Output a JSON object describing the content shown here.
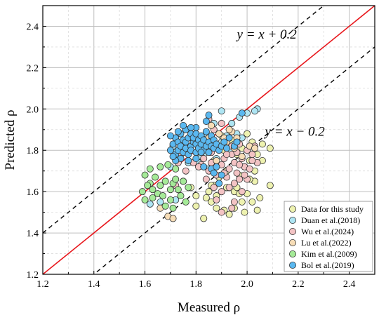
{
  "chart_data": {
    "type": "scatter",
    "title": "",
    "xlabel": "Measured ρ",
    "ylabel": "Predicted ρ",
    "xlim": [
      1.2,
      2.5
    ],
    "ylim": [
      1.2,
      2.5
    ],
    "x_ticks": [
      "1.2",
      "1.4",
      "1.6",
      "1.8",
      "2.0",
      "2.2",
      "2.4"
    ],
    "y_ticks": [
      "1.2",
      "1.4",
      "1.6",
      "1.8",
      "2.0",
      "2.2",
      "2.4"
    ],
    "grid": true,
    "legend_position": "bottom-right",
    "reference_lines": [
      {
        "label": "y = x + 0.2",
        "offset": 0.2,
        "style": "dashed",
        "color": "#000000"
      },
      {
        "label": "y = x",
        "offset": 0.0,
        "style": "solid",
        "color": "#e8161b"
      },
      {
        "label": "y = x − 0.2",
        "offset": -0.2,
        "style": "dashed",
        "color": "#000000"
      }
    ],
    "annotations": [
      {
        "text": "y = x + 0.2",
        "x": 1.96,
        "y": 2.34
      },
      {
        "text": "y = x − 0.2",
        "x": 2.07,
        "y": 1.87
      }
    ],
    "series": [
      {
        "name": "Data for this study",
        "color": "#eef2b0",
        "points": [
          [
            1.87,
            1.63
          ],
          [
            1.92,
            1.62
          ],
          [
            1.95,
            1.6
          ],
          [
            1.97,
            1.59
          ],
          [
            2.0,
            1.59
          ],
          [
            1.85,
            1.6
          ],
          [
            1.8,
            1.58
          ],
          [
            1.98,
            1.55
          ],
          [
            2.02,
            1.55
          ],
          [
            2.05,
            1.57
          ],
          [
            2.09,
            1.63
          ],
          [
            2.03,
            1.65
          ],
          [
            2.01,
            1.66
          ],
          [
            1.95,
            1.52
          ],
          [
            1.99,
            1.5
          ],
          [
            2.04,
            1.51
          ],
          [
            1.88,
            1.52
          ],
          [
            1.8,
            1.53
          ],
          [
            1.86,
            1.55
          ],
          [
            1.93,
            1.49
          ],
          [
            1.91,
            1.51
          ],
          [
            1.83,
            1.47
          ],
          [
            1.96,
            1.62
          ],
          [
            2.03,
            1.7
          ],
          [
            2.06,
            1.75
          ],
          [
            2.09,
            1.81
          ],
          [
            2.04,
            1.78
          ],
          [
            1.99,
            1.72
          ],
          [
            1.97,
            1.68
          ],
          [
            1.92,
            1.7
          ],
          [
            1.89,
            1.67
          ],
          [
            1.86,
            1.63
          ],
          [
            1.78,
            1.62
          ],
          [
            1.88,
            1.58
          ],
          [
            1.84,
            1.57
          ],
          [
            2.0,
            1.88
          ],
          [
            2.06,
            1.83
          ],
          [
            2.02,
            1.84
          ],
          [
            1.94,
            1.85
          ],
          [
            1.9,
            1.87
          ],
          [
            1.98,
            1.81
          ],
          [
            1.91,
            1.8
          ],
          [
            1.87,
            1.75
          ],
          [
            1.96,
            1.78
          ],
          [
            2.01,
            1.75
          ]
        ]
      },
      {
        "name": "Duan et al.(2018)",
        "color": "#aee5f3",
        "points": [
          [
            1.72,
            1.79
          ],
          [
            1.75,
            1.82
          ],
          [
            1.78,
            1.8
          ],
          [
            1.8,
            1.85
          ],
          [
            1.83,
            1.78
          ],
          [
            1.86,
            1.82
          ],
          [
            1.9,
            1.84
          ],
          [
            1.93,
            1.8
          ],
          [
            1.96,
            1.88
          ],
          [
            2.0,
            1.98
          ],
          [
            2.04,
            2.0
          ],
          [
            2.03,
            1.99
          ],
          [
            1.9,
            1.99
          ],
          [
            1.87,
            1.93
          ],
          [
            1.82,
            1.77
          ],
          [
            1.77,
            1.74
          ],
          [
            1.74,
            1.76
          ],
          [
            1.7,
            1.72
          ],
          [
            1.85,
            1.71
          ],
          [
            1.88,
            1.76
          ],
          [
            1.95,
            1.83
          ],
          [
            1.98,
            1.86
          ],
          [
            1.92,
            1.87
          ],
          [
            1.79,
            1.87
          ],
          [
            1.76,
            1.9
          ],
          [
            1.71,
            1.82
          ],
          [
            1.84,
            1.88
          ],
          [
            1.81,
            1.74
          ],
          [
            1.62,
            1.54
          ],
          [
            1.66,
            1.55
          ],
          [
            1.72,
            1.56
          ],
          [
            1.94,
            1.93
          ],
          [
            1.97,
            1.96
          ]
        ]
      },
      {
        "name": "Wu et al.(2024)",
        "color": "#f3c3c4",
        "points": [
          [
            1.85,
            1.7
          ],
          [
            1.88,
            1.68
          ],
          [
            1.9,
            1.73
          ],
          [
            1.93,
            1.71
          ],
          [
            1.95,
            1.74
          ],
          [
            1.98,
            1.76
          ],
          [
            2.0,
            1.8
          ],
          [
            2.02,
            1.78
          ],
          [
            1.92,
            1.67
          ],
          [
            1.89,
            1.64
          ],
          [
            1.87,
            1.62
          ],
          [
            1.84,
            1.66
          ],
          [
            1.96,
            1.69
          ],
          [
            1.99,
            1.72
          ],
          [
            1.94,
            1.78
          ],
          [
            1.91,
            1.76
          ],
          [
            1.97,
            1.83
          ],
          [
            2.03,
            1.82
          ],
          [
            1.86,
            1.74
          ],
          [
            1.83,
            1.76
          ],
          [
            1.8,
            1.79
          ],
          [
            1.82,
            1.73
          ],
          [
            1.79,
            1.74
          ],
          [
            1.76,
            1.7
          ],
          [
            1.73,
            1.74
          ],
          [
            1.74,
            1.78
          ],
          [
            1.77,
            1.81
          ],
          [
            2.01,
            1.71
          ],
          [
            2.04,
            1.74
          ],
          [
            1.95,
            1.64
          ],
          [
            1.93,
            1.62
          ],
          [
            1.9,
            1.6
          ],
          [
            1.88,
            1.56
          ],
          [
            1.95,
            1.55
          ],
          [
            1.98,
            1.6
          ],
          [
            2.0,
            1.66
          ],
          [
            1.87,
            1.9
          ],
          [
            1.9,
            1.93
          ],
          [
            1.85,
            1.95
          ],
          [
            1.89,
            1.81
          ],
          [
            1.94,
            1.82
          ],
          [
            1.92,
            1.78
          ],
          [
            1.97,
            1.73
          ],
          [
            1.99,
            1.68
          ],
          [
            1.86,
            1.79
          ],
          [
            1.81,
            1.72
          ],
          [
            1.96,
            1.79
          ],
          [
            1.91,
            1.69
          ],
          [
            1.97,
            1.66
          ],
          [
            2.02,
            1.75
          ],
          [
            1.9,
            1.5
          ],
          [
            1.94,
            1.52
          ],
          [
            1.85,
            1.84
          ],
          [
            1.72,
            1.63
          ],
          [
            1.75,
            1.65
          ]
        ]
      },
      {
        "name": "Lu  et al.(2022)",
        "color": "#f7ddb7",
        "points": [
          [
            1.69,
            1.48
          ],
          [
            1.71,
            1.47
          ],
          [
            1.66,
            1.52
          ],
          [
            1.94,
            1.89
          ],
          [
            1.96,
            1.86
          ],
          [
            1.92,
            1.84
          ],
          [
            1.98,
            1.77
          ],
          [
            2.01,
            1.82
          ],
          [
            1.88,
            1.75
          ],
          [
            1.85,
            1.86
          ],
          [
            1.93,
            1.9
          ],
          [
            1.89,
            1.88
          ],
          [
            1.86,
            1.92
          ],
          [
            2.03,
            1.81
          ],
          [
            1.95,
            1.81
          ],
          [
            1.91,
            1.86
          ]
        ]
      },
      {
        "name": "Kim et al.(2009)",
        "color": "#a5ea98",
        "points": [
          [
            1.59,
            1.6
          ],
          [
            1.6,
            1.56
          ],
          [
            1.62,
            1.64
          ],
          [
            1.63,
            1.61
          ],
          [
            1.6,
            1.68
          ],
          [
            1.62,
            1.71
          ],
          [
            1.65,
            1.59
          ],
          [
            1.67,
            1.58
          ],
          [
            1.63,
            1.57
          ],
          [
            1.64,
            1.67
          ],
          [
            1.66,
            1.63
          ],
          [
            1.68,
            1.65
          ],
          [
            1.7,
            1.61
          ],
          [
            1.71,
            1.64
          ],
          [
            1.72,
            1.66
          ],
          [
            1.73,
            1.61
          ],
          [
            1.7,
            1.56
          ],
          [
            1.68,
            1.53
          ],
          [
            1.71,
            1.52
          ],
          [
            1.74,
            1.58
          ],
          [
            1.76,
            1.55
          ],
          [
            1.66,
            1.72
          ],
          [
            1.69,
            1.73
          ],
          [
            1.72,
            1.71
          ],
          [
            1.77,
            1.62
          ],
          [
            1.75,
            1.65
          ],
          [
            1.61,
            1.63
          ]
        ]
      },
      {
        "name": "Bol et al.(2019)",
        "color": "#5ab8f0",
        "points": [
          [
            1.7,
            1.8
          ],
          [
            1.71,
            1.83
          ],
          [
            1.72,
            1.78
          ],
          [
            1.72,
            1.86
          ],
          [
            1.73,
            1.8
          ],
          [
            1.73,
            1.84
          ],
          [
            1.74,
            1.82
          ],
          [
            1.74,
            1.88
          ],
          [
            1.75,
            1.79
          ],
          [
            1.75,
            1.85
          ],
          [
            1.76,
            1.81
          ],
          [
            1.76,
            1.84
          ],
          [
            1.76,
            1.9
          ],
          [
            1.77,
            1.78
          ],
          [
            1.77,
            1.86
          ],
          [
            1.78,
            1.82
          ],
          [
            1.78,
            1.88
          ],
          [
            1.78,
            1.8
          ],
          [
            1.79,
            1.84
          ],
          [
            1.79,
            1.86
          ],
          [
            1.8,
            1.79
          ],
          [
            1.8,
            1.83
          ],
          [
            1.8,
            1.88
          ],
          [
            1.8,
            1.91
          ],
          [
            1.81,
            1.85
          ],
          [
            1.81,
            1.81
          ],
          [
            1.82,
            1.83
          ],
          [
            1.82,
            1.87
          ],
          [
            1.83,
            1.8
          ],
          [
            1.83,
            1.85
          ],
          [
            1.84,
            1.82
          ],
          [
            1.84,
            1.89
          ],
          [
            1.84,
            1.94
          ],
          [
            1.85,
            1.84
          ],
          [
            1.85,
            1.79
          ],
          [
            1.86,
            1.87
          ],
          [
            1.86,
            1.82
          ],
          [
            1.87,
            1.85
          ],
          [
            1.87,
            1.81
          ],
          [
            1.88,
            1.83
          ],
          [
            1.89,
            1.8
          ],
          [
            1.9,
            1.82
          ],
          [
            1.91,
            1.84
          ],
          [
            1.92,
            1.81
          ],
          [
            1.93,
            1.86
          ],
          [
            1.95,
            1.82
          ],
          [
            1.96,
            1.84
          ],
          [
            1.8,
            1.76
          ],
          [
            1.77,
            1.75
          ],
          [
            1.74,
            1.76
          ],
          [
            1.72,
            1.75
          ],
          [
            1.71,
            1.77
          ],
          [
            1.85,
            1.97
          ],
          [
            1.83,
            1.72
          ],
          [
            1.86,
            1.71
          ],
          [
            1.88,
            1.72
          ],
          [
            1.87,
            1.69
          ],
          [
            1.9,
            1.68
          ],
          [
            1.89,
            1.64
          ],
          [
            1.98,
            1.98
          ],
          [
            1.7,
            1.87
          ],
          [
            1.73,
            1.89
          ],
          [
            1.75,
            1.92
          ],
          [
            1.78,
            1.91
          ],
          [
            1.82,
            1.79
          ]
        ]
      }
    ]
  }
}
